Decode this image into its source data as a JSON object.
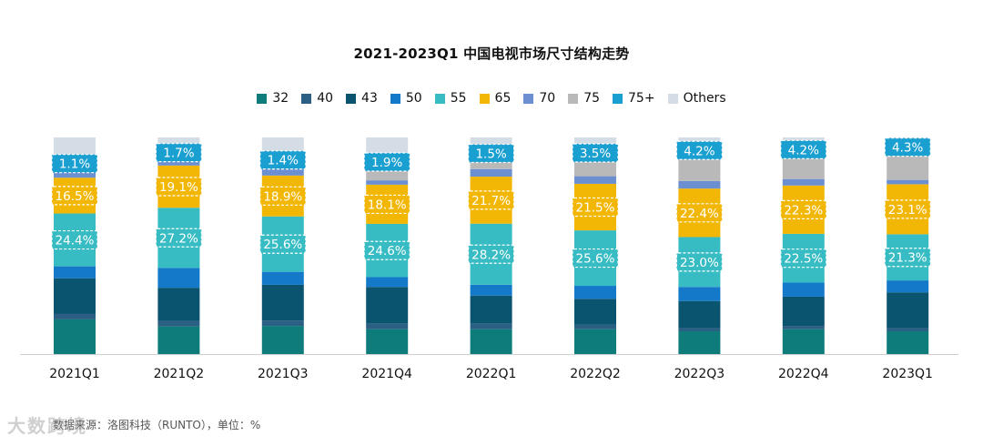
{
  "chart_data": {
    "type": "bar",
    "stacked": true,
    "title": "2021-2023Q1 中国电视市场尺寸结构走势",
    "categories": [
      "2021Q1",
      "2021Q2",
      "2021Q3",
      "2021Q4",
      "2022Q1",
      "2022Q2",
      "2022Q3",
      "2022Q4",
      "2023Q1"
    ],
    "unit": "%",
    "series": [
      {
        "name": "32",
        "color": "#0e7c7b",
        "values": [
          16.0,
          12.5,
          13.0,
          11.5,
          11.5,
          11.5,
          10.5,
          11.5,
          10.5
        ]
      },
      {
        "name": "40",
        "color": "#2b5f84",
        "values": [
          2.5,
          2.5,
          2.5,
          2.5,
          2.5,
          2.0,
          1.5,
          1.5,
          1.5
        ]
      },
      {
        "name": "43",
        "color": "#0b5470",
        "values": [
          16.5,
          15.0,
          16.5,
          17.0,
          13.0,
          12.0,
          12.5,
          13.5,
          16.5
        ]
      },
      {
        "name": "50",
        "color": "#1479c9",
        "values": [
          5.5,
          9.0,
          6.0,
          4.5,
          5.0,
          6.0,
          6.5,
          6.5,
          5.5
        ]
      },
      {
        "name": "55",
        "color": "#38bcc4",
        "values": [
          24.4,
          27.2,
          25.6,
          24.6,
          28.2,
          25.6,
          23.0,
          22.5,
          21.3
        ]
      },
      {
        "name": "65",
        "color": "#f2b705",
        "values": [
          16.5,
          19.1,
          18.9,
          18.1,
          21.7,
          21.5,
          22.4,
          22.3,
          23.1
        ]
      },
      {
        "name": "70",
        "color": "#6b8fd1",
        "values": [
          3.0,
          2.5,
          3.0,
          2.0,
          3.5,
          3.5,
          3.5,
          3.0,
          2.0
        ]
      },
      {
        "name": "75",
        "color": "#b9b9b9",
        "values": [
          3.0,
          2.5,
          3.5,
          7.5,
          6.5,
          9.0,
          12.0,
          11.5,
          13.0
        ]
      },
      {
        "name": "75+",
        "color": "#1a9fd1",
        "values": [
          1.1,
          1.7,
          1.4,
          1.9,
          1.5,
          3.5,
          4.2,
          4.2,
          4.3
        ]
      },
      {
        "name": "Others",
        "color": "#d4dce6",
        "values": [
          11.5,
          6.0,
          9.7,
          10.4,
          6.6,
          5.4,
          3.9,
          3.5,
          2.3
        ]
      }
    ],
    "labeled_series": [
      "55",
      "65",
      "75+"
    ],
    "data_labels": {
      "55": [
        "24.4%",
        "27.2%",
        "25.6%",
        "24.6%",
        "28.2%",
        "25.6%",
        "23.0%",
        "22.5%",
        "21.3%"
      ],
      "65": [
        "16.5%",
        "19.1%",
        "18.9%",
        "18.1%",
        "21.7%",
        "21.5%",
        "22.4%",
        "22.3%",
        "23.1%"
      ],
      "75+": [
        "1.1%",
        "1.7%",
        "1.4%",
        "1.9%",
        "1.5%",
        "3.5%",
        "4.2%",
        "4.2%",
        "4.3%"
      ]
    },
    "ylim": [
      0,
      100
    ],
    "legend_position": "top"
  },
  "source_text": "数据来源：洛图科技（RUNTO），单位：%",
  "watermark_text": "大数跨境"
}
